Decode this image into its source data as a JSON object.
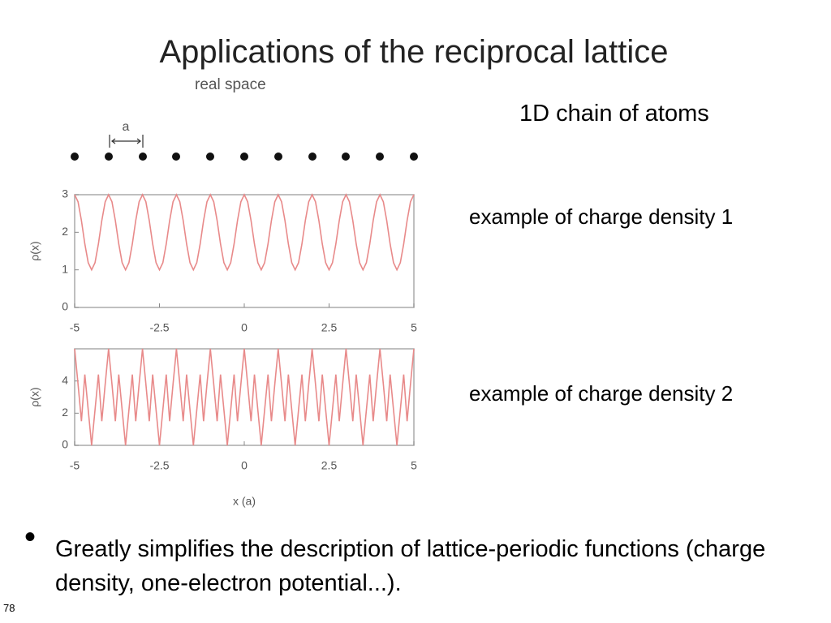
{
  "slide": {
    "title": "Applications of the reciprocal lattice",
    "subtitle": "real space",
    "chain_label": "1D chain of atoms",
    "spacing_label": "a",
    "density_label_1": "example of charge density 1",
    "density_label_2": "example of charge density 2",
    "bullet": "Greatly simplifies the description of lattice-periodic functions (charge density, one-electron potential...).",
    "page_number": "78"
  },
  "chart_data": [
    {
      "type": "line",
      "y_label": "ρ(x)",
      "xlim": [
        -5,
        5
      ],
      "ylim": [
        0,
        3
      ],
      "xticks": [
        -5,
        -2.5,
        0,
        2.5,
        5
      ],
      "yticks": [
        0,
        1,
        2,
        3
      ],
      "x": [
        -5,
        -4.9,
        -4.8,
        -4.7,
        -4.6,
        -4.5,
        -4.4,
        -4.3,
        -4.2,
        -4.1,
        -4,
        -3.9,
        -3.8,
        -3.7,
        -3.6,
        -3.5,
        -3.4,
        -3.3,
        -3.2,
        -3.1,
        -3,
        -2.9,
        -2.8,
        -2.7,
        -2.6,
        -2.5,
        -2.4,
        -2.3,
        -2.2,
        -2.1,
        -2,
        -1.9,
        -1.8,
        -1.7,
        -1.6,
        -1.5,
        -1.4,
        -1.3,
        -1.2,
        -1.1,
        -1,
        -0.9,
        -0.8,
        -0.7,
        -0.6,
        -0.5,
        -0.4,
        -0.3,
        -0.2,
        -0.1,
        0,
        0.1,
        0.2,
        0.3,
        0.4,
        0.5,
        0.6,
        0.7,
        0.8,
        0.9,
        1,
        1.1,
        1.2,
        1.3,
        1.4,
        1.5,
        1.6,
        1.7,
        1.8,
        1.9,
        2,
        2.1,
        2.2,
        2.3,
        2.4,
        2.5,
        2.6,
        2.7,
        2.8,
        2.9,
        3,
        3.1,
        3.2,
        3.3,
        3.4,
        3.5,
        3.6,
        3.7,
        3.8,
        3.9,
        4,
        4.1,
        4.2,
        4.3,
        4.4,
        4.5,
        4.6,
        4.7,
        4.8,
        4.9,
        5
      ],
      "series": [
        {
          "color": "#e88a8a",
          "values": [
            3,
            2.81,
            2.31,
            1.69,
            1.19,
            1,
            1.19,
            1.69,
            2.31,
            2.81,
            3,
            2.81,
            2.31,
            1.69,
            1.19,
            1,
            1.19,
            1.69,
            2.31,
            2.81,
            3,
            2.81,
            2.31,
            1.69,
            1.19,
            1,
            1.19,
            1.69,
            2.31,
            2.81,
            3,
            2.81,
            2.31,
            1.69,
            1.19,
            1,
            1.19,
            1.69,
            2.31,
            2.81,
            3,
            2.81,
            2.31,
            1.69,
            1.19,
            1,
            1.19,
            1.69,
            2.31,
            2.81,
            3,
            2.81,
            2.31,
            1.69,
            1.19,
            1,
            1.19,
            1.69,
            2.31,
            2.81,
            3,
            2.81,
            2.31,
            1.69,
            1.19,
            1,
            1.19,
            1.69,
            2.31,
            2.81,
            3,
            2.81,
            2.31,
            1.69,
            1.19,
            1,
            1.19,
            1.69,
            2.31,
            2.81,
            3,
            2.81,
            2.31,
            1.69,
            1.19,
            1,
            1.19,
            1.69,
            2.31,
            2.81,
            3,
            2.81,
            2.31,
            1.69,
            1.19,
            1,
            1.19,
            1.69,
            2.31,
            2.81,
            3
          ]
        }
      ]
    },
    {
      "type": "line",
      "y_label": "ρ(x)",
      "x_label": "x (a)",
      "xlim": [
        -5,
        5
      ],
      "ylim": [
        0,
        6
      ],
      "xticks": [
        -5,
        -2.5,
        0,
        2.5,
        5
      ],
      "yticks": [
        0,
        2,
        4
      ],
      "x": [
        -5,
        -4.9,
        -4.8,
        -4.7,
        -4.6,
        -4.5,
        -4.4,
        -4.3,
        -4.2,
        -4.1,
        -4,
        -3.9,
        -3.8,
        -3.7,
        -3.6,
        -3.5,
        -3.4,
        -3.3,
        -3.2,
        -3.1,
        -3,
        -2.9,
        -2.8,
        -2.7,
        -2.6,
        -2.5,
        -2.4,
        -2.3,
        -2.2,
        -2.1,
        -2,
        -1.9,
        -1.8,
        -1.7,
        -1.6,
        -1.5,
        -1.4,
        -1.3,
        -1.2,
        -1.1,
        -1,
        -0.9,
        -0.8,
        -0.7,
        -0.6,
        -0.5,
        -0.4,
        -0.3,
        -0.2,
        -0.1,
        0,
        0.1,
        0.2,
        0.3,
        0.4,
        0.5,
        0.6,
        0.7,
        0.8,
        0.9,
        1,
        1.1,
        1.2,
        1.3,
        1.4,
        1.5,
        1.6,
        1.7,
        1.8,
        1.9,
        2,
        2.1,
        2.2,
        2.3,
        2.4,
        2.5,
        2.6,
        2.7,
        2.8,
        2.9,
        3,
        3.1,
        3.2,
        3.3,
        3.4,
        3.5,
        3.6,
        3.7,
        3.8,
        3.9,
        4,
        4.1,
        4.2,
        4.3,
        4.4,
        4.5,
        4.6,
        4.7,
        4.8,
        4.9,
        5
      ],
      "series": [
        {
          "color": "#e88a8a",
          "values": [
            6,
            3.8,
            1.5,
            4.4,
            2.2,
            0,
            2.2,
            4.4,
            1.5,
            3.8,
            6,
            3.8,
            1.5,
            4.4,
            2.2,
            0,
            2.2,
            4.4,
            1.5,
            3.8,
            6,
            3.8,
            1.5,
            4.4,
            2.2,
            0,
            2.2,
            4.4,
            1.5,
            3.8,
            6,
            3.8,
            1.5,
            4.4,
            2.2,
            0,
            2.2,
            4.4,
            1.5,
            3.8,
            6,
            3.8,
            1.5,
            4.4,
            2.2,
            0,
            2.2,
            4.4,
            1.5,
            3.8,
            6,
            3.8,
            1.5,
            4.4,
            2.2,
            0,
            2.2,
            4.4,
            1.5,
            3.8,
            6,
            3.8,
            1.5,
            4.4,
            2.2,
            0,
            2.2,
            4.4,
            1.5,
            3.8,
            6,
            3.8,
            1.5,
            4.4,
            2.2,
            0,
            2.2,
            4.4,
            1.5,
            3.8,
            6,
            3.8,
            1.5,
            4.4,
            2.2,
            0,
            2.2,
            4.4,
            1.5,
            3.8,
            6,
            3.8,
            1.5,
            4.4,
            2.2,
            0,
            2.2,
            4.4,
            1.5,
            3.8,
            6
          ]
        }
      ]
    }
  ]
}
